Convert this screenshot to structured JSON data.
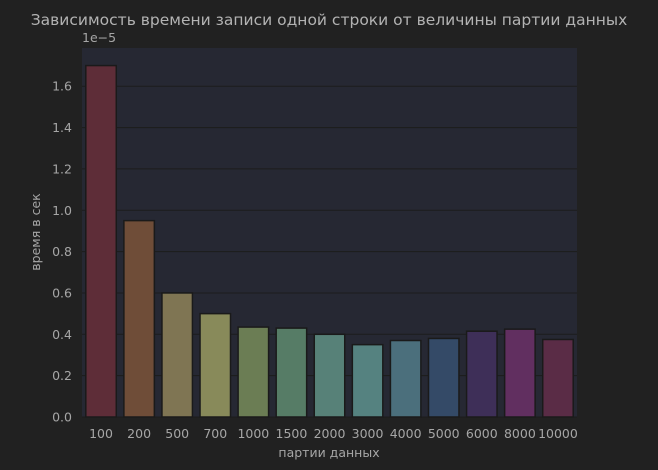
{
  "chart_data": {
    "type": "bar",
    "title": "Зависимость времени записи одной строки от величины партии данных",
    "xlabel": "партии данных",
    "ylabel": "время в сек",
    "y_offset_label": "1e−5",
    "categories": [
      "100",
      "200",
      "500",
      "700",
      "1000",
      "1500",
      "2000",
      "3000",
      "4000",
      "5000",
      "6000",
      "8000",
      "10000"
    ],
    "values": [
      1.7,
      0.95,
      0.6,
      0.5,
      0.435,
      0.43,
      0.4,
      0.35,
      0.37,
      0.38,
      0.415,
      0.425,
      0.375
    ],
    "value_scale": "1e-5",
    "colors": [
      "#5e2d38",
      "#6f4d38",
      "#7f7553",
      "#888a5a",
      "#6b7d54",
      "#567c66",
      "#578178",
      "#558280",
      "#4b6f7c",
      "#344a67",
      "#3e2f58",
      "#612f60",
      "#5a2c46"
    ],
    "yticks": [
      "0.0",
      "0.2",
      "0.4",
      "0.6",
      "0.8",
      "1.0",
      "1.2",
      "1.4",
      "1.6"
    ],
    "ylim": [
      0,
      1.785
    ],
    "grid": true,
    "plot_background": "#262833",
    "figure_background": "#212121",
    "grid_color": "#1c1c1c"
  }
}
